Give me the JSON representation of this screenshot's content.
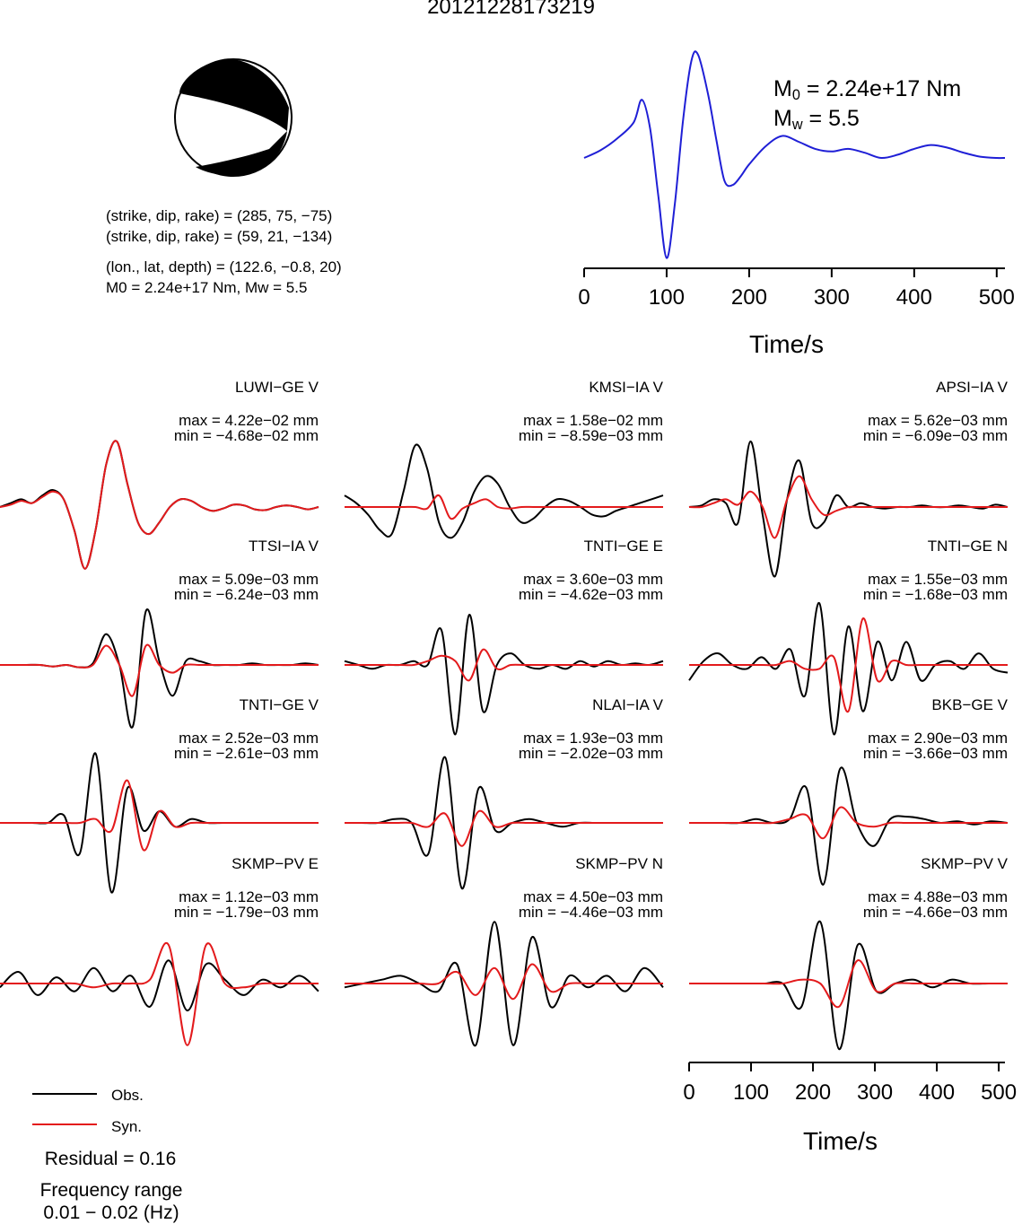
{
  "title": "20121228173219",
  "focal_mechanism": {
    "plane1": "(strike, dip, rake) = (285, 75, −75)",
    "plane2": "(strike, dip, rake) = (59, 21, −134)",
    "location": "(lon., lat, depth) = (122.6, −0.8, 20)",
    "moment": "M0 = 2.24e+17 Nm, Mw = 5.5"
  },
  "stf": {
    "m0_label": "M",
    "m0_sub": "0",
    "m0_value": " = 2.24e+17 Nm",
    "mw_label": "M",
    "mw_sub": "w",
    "mw_value": " = 5.5",
    "xlabel": "Time/s",
    "xticks": [
      "0",
      "100",
      "200",
      "300",
      "400",
      "500"
    ]
  },
  "bottom_axis": {
    "xlabel": "Time/s",
    "xticks": [
      "0",
      "100",
      "200",
      "300",
      "400",
      "500"
    ]
  },
  "legend": {
    "obs": "Obs.",
    "syn": "Syn.",
    "residual": "Residual = 0.16",
    "freq_title": "Frequency range",
    "freq_range": "0.01 − 0.02 (Hz)"
  },
  "colors": {
    "obs": "#000000",
    "syn": "#e31a1c",
    "stf": "#1f1fd6"
  },
  "chart_data": [
    {
      "type": "line",
      "name_hint": "source time function",
      "xlabel": "Time/s",
      "xlim": [
        0,
        510
      ],
      "x": [
        0,
        20,
        40,
        60,
        70,
        80,
        90,
        100,
        110,
        120,
        130,
        138,
        150,
        160,
        170,
        180,
        190,
        200,
        220,
        240,
        260,
        280,
        300,
        320,
        340,
        360,
        380,
        400,
        420,
        440,
        460,
        480,
        500,
        510
      ],
      "values": [
        0,
        0.12,
        0.3,
        0.55,
        0.9,
        0.45,
        -0.6,
        -1.55,
        -0.7,
        0.6,
        1.5,
        1.6,
        1.0,
        0.3,
        -0.35,
        -0.42,
        -0.28,
        -0.1,
        0.18,
        0.34,
        0.25,
        0.14,
        0.1,
        0.14,
        0.08,
        0.0,
        0.05,
        0.14,
        0.2,
        0.16,
        0.08,
        0.02,
        0.0,
        0.0
      ]
    },
    {
      "type": "line",
      "panels": [
        {
          "station": "LUWI−GE V",
          "max": "max = 4.22e−02 mm",
          "min": "min = −4.68e−02 mm",
          "obs": [
            0,
            0.05,
            0.1,
            0.05,
            0.15,
            0.22,
            0.1,
            -0.3,
            -0.8,
            -0.3,
            0.55,
            0.85,
            0.3,
            -0.2,
            -0.35,
            -0.2,
            0,
            0.1,
            0.08,
            0,
            -0.05,
            -0.02,
            0.03,
            0.02,
            -0.03,
            -0.04,
            0,
            0.02,
            0,
            -0.03,
            0
          ],
          "syn": [
            0,
            0.03,
            0.08,
            0.05,
            0.13,
            0.2,
            0.1,
            -0.3,
            -0.8,
            -0.3,
            0.55,
            0.85,
            0.3,
            -0.2,
            -0.35,
            -0.2,
            0,
            0.1,
            0.08,
            0,
            -0.05,
            -0.02,
            0.03,
            0.02,
            -0.03,
            -0.04,
            0,
            0.02,
            0,
            -0.03,
            0
          ]
        },
        {
          "station": "KMSI−IA V",
          "max": "max = 1.58e−02 mm",
          "min": "min = −8.59e−03 mm",
          "obs": [
            0.15,
            0.05,
            -0.1,
            -0.3,
            -0.35,
            0.2,
            0.8,
            0.5,
            -0.2,
            -0.4,
            -0.2,
            0.2,
            0.4,
            0.3,
            0,
            -0.2,
            -0.15,
            0,
            0.1,
            0.08,
            0,
            -0.1,
            -0.12,
            -0.05,
            0,
            0.05,
            0.1,
            0.15
          ],
          "syn": [
            0,
            0,
            0,
            0,
            0,
            0,
            0,
            -0.02,
            0.15,
            -0.15,
            -0.02,
            0.05,
            0.1,
            0,
            -0.02,
            0,
            0,
            0,
            0,
            0,
            0,
            0,
            0,
            0,
            0,
            0,
            0,
            0
          ]
        },
        {
          "station": "APSI−IA V",
          "max": "max = 5.62e−03 mm",
          "min": "min = −6.09e−03 mm",
          "obs": [
            0,
            0.02,
            0.1,
            0.05,
            -0.2,
            0.85,
            -0.1,
            -0.9,
            0.1,
            0.6,
            -0.2,
            -0.2,
            0.15,
            0,
            0.05,
            0,
            -0.02,
            0,
            0,
            0.02,
            0,
            0,
            0.02,
            0,
            -0.02,
            0.03,
            0
          ],
          "syn": [
            0,
            0,
            0.05,
            0.1,
            0.03,
            0.2,
            0,
            -0.4,
            0.1,
            0.4,
            0.1,
            -0.1,
            -0.05,
            0,
            0,
            0,
            0,
            0,
            0,
            0,
            0,
            0,
            0,
            0,
            0,
            0,
            0
          ]
        },
        {
          "station": "TTSI−IA V",
          "max": "max = 5.09e−03 mm",
          "min": "min = −6.24e−03 mm",
          "obs": [
            0,
            0,
            0,
            0,
            -0.02,
            0,
            -0.03,
            0.02,
            0.4,
            0,
            -0.8,
            0.7,
            0.05,
            -0.4,
            0.05,
            0.05,
            0,
            0,
            0,
            0.02,
            0,
            0,
            0,
            0.02,
            0
          ],
          "syn": [
            0,
            0,
            0,
            0,
            -0.02,
            0,
            -0.03,
            0,
            0.25,
            0,
            -0.4,
            0.25,
            0,
            -0.1,
            0,
            0,
            0,
            0,
            0,
            0,
            0,
            0,
            0,
            0,
            0
          ]
        },
        {
          "station": "TNTI−GE E",
          "max": "max = 3.60e−03 mm",
          "min": "min = −4.62e−03 mm",
          "obs": [
            0.05,
            0,
            -0.05,
            0,
            0,
            0.05,
            0,
            0.45,
            -0.9,
            0.65,
            -0.6,
            0,
            0.15,
            0,
            -0.05,
            0,
            -0.05,
            0.05,
            -0.02,
            0.05,
            0,
            0.02,
            0,
            0.05
          ],
          "syn": [
            0,
            0,
            0,
            0,
            0,
            0,
            0.05,
            0.12,
            0.05,
            -0.2,
            0.2,
            -0.05,
            0,
            0,
            0,
            0,
            0,
            0,
            0,
            0,
            0,
            0,
            0,
            0
          ]
        },
        {
          "station": "TNTI−GE N",
          "max": "max = 1.55e−03 mm",
          "min": "min = −1.68e−03 mm",
          "obs": [
            -0.2,
            0.05,
            0.15,
            0,
            -0.05,
            0.1,
            -0.05,
            0.2,
            -0.4,
            0.8,
            -0.9,
            0.5,
            -0.6,
            0.3,
            -0.2,
            0.3,
            -0.2,
            0,
            0.05,
            -0.05,
            0.15,
            -0.05,
            -0.1
          ],
          "syn": [
            0,
            0,
            0,
            0,
            0,
            0,
            0,
            0.05,
            -0.05,
            -0.05,
            0.1,
            -0.6,
            0.6,
            -0.2,
            0.05,
            0,
            0,
            0,
            0,
            0,
            0,
            0,
            0
          ]
        },
        {
          "station": "TNTI−GE V",
          "max": "max = 2.52e−03 mm",
          "min": "min = −2.61e−03 mm",
          "obs": [
            0,
            0,
            0,
            0,
            0.1,
            -0.4,
            0.9,
            -0.9,
            0.45,
            -0.1,
            0.15,
            -0.05,
            0.05,
            0,
            0,
            0,
            0,
            0,
            0,
            0,
            0
          ],
          "syn": [
            0,
            0,
            0,
            0,
            0,
            0,
            0.05,
            -0.1,
            0.55,
            -0.35,
            0.15,
            -0.05,
            0,
            0,
            0,
            0,
            0,
            0,
            0,
            0,
            0
          ]
        },
        {
          "station": "NLAI−IA V",
          "max": "max = 1.93e−03 mm",
          "min": "min = −2.02e−03 mm",
          "obs": [
            0,
            0,
            0,
            0.05,
            0,
            -0.4,
            0.85,
            -0.85,
            0.45,
            -0.1,
            0,
            0.05,
            0,
            -0.05,
            0,
            0,
            0,
            0,
            0,
            0
          ],
          "syn": [
            0,
            0,
            0,
            0,
            0,
            -0.05,
            0.12,
            -0.3,
            0.15,
            -0.05,
            0,
            0,
            0,
            0,
            0,
            0,
            0,
            0,
            0,
            0
          ]
        },
        {
          "station": "BKB−GE V",
          "max": "max = 2.90e−03 mm",
          "min": "min = −3.66e−03 mm",
          "obs": [
            0,
            0,
            0,
            0,
            0.05,
            0,
            0.05,
            0.45,
            -0.8,
            0.7,
            0,
            -0.3,
            0.05,
            0.08,
            0.05,
            0,
            0.02,
            -0.02,
            0.02,
            0
          ],
          "syn": [
            0,
            0,
            0,
            0,
            0,
            0,
            0.05,
            0.1,
            -0.2,
            0.2,
            0,
            -0.05,
            0,
            0,
            0,
            0,
            0,
            0,
            0,
            0
          ]
        },
        {
          "station": "SKMP−PV E",
          "max": "max = 1.12e−03 mm",
          "min": "min = −1.79e−03 mm",
          "obs": [
            -0.05,
            0.15,
            -0.15,
            0.08,
            -0.1,
            0.2,
            -0.1,
            0.1,
            -0.3,
            0.3,
            -0.35,
            0.25,
            0.05,
            -0.15,
            0.05,
            -0.05,
            0.1,
            -0.1
          ],
          "syn": [
            0,
            0,
            0,
            0,
            0,
            -0.05,
            0,
            0,
            0.05,
            0.5,
            -0.8,
            0.5,
            0,
            -0.05,
            0,
            0,
            0,
            0
          ]
        },
        {
          "station": "SKMP−PV N",
          "max": "max = 4.50e−03 mm",
          "min": "min = −4.46e−03 mm",
          "obs": [
            -0.05,
            0,
            0.05,
            0.1,
            0,
            -0.1,
            0.25,
            -0.8,
            0.8,
            -0.8,
            0.6,
            -0.3,
            0.1,
            -0.05,
            0.1,
            -0.1,
            0.2,
            -0.05
          ],
          "syn": [
            0,
            0,
            0,
            0,
            0,
            0,
            0.15,
            -0.15,
            0.2,
            -0.2,
            0.25,
            -0.1,
            0,
            0,
            0,
            0,
            0,
            0
          ]
        },
        {
          "station": "SKMP−PV V",
          "max": "max = 4.88e−03 mm",
          "min": "min = −4.66e−03 mm",
          "obs": [
            0,
            0,
            0,
            0,
            0,
            0,
            -0.3,
            0.8,
            -0.85,
            0.5,
            -0.1,
            0,
            0.05,
            -0.05,
            0.05,
            0,
            0,
            0
          ],
          "syn": [
            0,
            0,
            0,
            0,
            0,
            0,
            0.05,
            0,
            -0.3,
            0.3,
            -0.1,
            0,
            0,
            0,
            0,
            0,
            0,
            0
          ]
        }
      ]
    }
  ]
}
